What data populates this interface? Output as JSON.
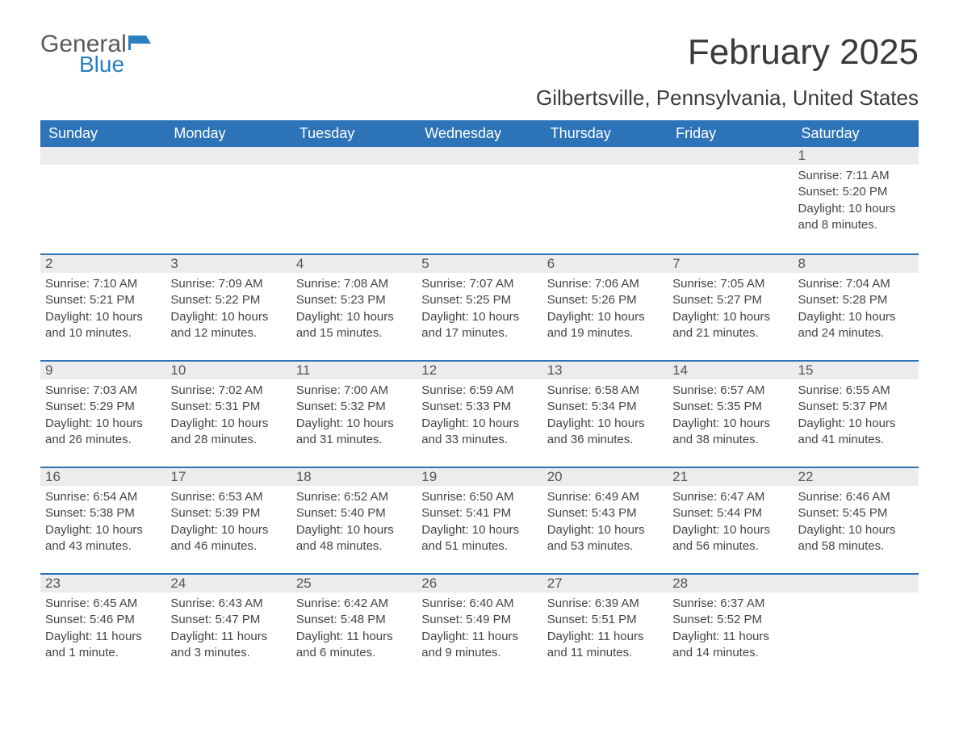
{
  "logo": {
    "word1": "General",
    "word2": "Blue",
    "flag_color": "#2a7fbf",
    "word1_color": "#5a5a5a",
    "word2_color": "#2a7fbf"
  },
  "title": "February 2025",
  "location": "Gilbertsville, Pennsylvania, United States",
  "colors": {
    "header_bg": "#2d73b8",
    "header_text": "#ffffff",
    "daynum_bg": "#ececec",
    "row_divider": "#2d73b8",
    "body_text": "#444444",
    "page_bg": "#ffffff"
  },
  "weekdays": [
    "Sunday",
    "Monday",
    "Tuesday",
    "Wednesday",
    "Thursday",
    "Friday",
    "Saturday"
  ],
  "weeks": [
    [
      {
        "blank": true
      },
      {
        "blank": true
      },
      {
        "blank": true
      },
      {
        "blank": true
      },
      {
        "blank": true
      },
      {
        "blank": true
      },
      {
        "day": "1",
        "sunrise": "Sunrise: 7:11 AM",
        "sunset": "Sunset: 5:20 PM",
        "daylight": "Daylight: 10 hours and 8 minutes."
      }
    ],
    [
      {
        "day": "2",
        "sunrise": "Sunrise: 7:10 AM",
        "sunset": "Sunset: 5:21 PM",
        "daylight": "Daylight: 10 hours and 10 minutes."
      },
      {
        "day": "3",
        "sunrise": "Sunrise: 7:09 AM",
        "sunset": "Sunset: 5:22 PM",
        "daylight": "Daylight: 10 hours and 12 minutes."
      },
      {
        "day": "4",
        "sunrise": "Sunrise: 7:08 AM",
        "sunset": "Sunset: 5:23 PM",
        "daylight": "Daylight: 10 hours and 15 minutes."
      },
      {
        "day": "5",
        "sunrise": "Sunrise: 7:07 AM",
        "sunset": "Sunset: 5:25 PM",
        "daylight": "Daylight: 10 hours and 17 minutes."
      },
      {
        "day": "6",
        "sunrise": "Sunrise: 7:06 AM",
        "sunset": "Sunset: 5:26 PM",
        "daylight": "Daylight: 10 hours and 19 minutes."
      },
      {
        "day": "7",
        "sunrise": "Sunrise: 7:05 AM",
        "sunset": "Sunset: 5:27 PM",
        "daylight": "Daylight: 10 hours and 21 minutes."
      },
      {
        "day": "8",
        "sunrise": "Sunrise: 7:04 AM",
        "sunset": "Sunset: 5:28 PM",
        "daylight": "Daylight: 10 hours and 24 minutes."
      }
    ],
    [
      {
        "day": "9",
        "sunrise": "Sunrise: 7:03 AM",
        "sunset": "Sunset: 5:29 PM",
        "daylight": "Daylight: 10 hours and 26 minutes."
      },
      {
        "day": "10",
        "sunrise": "Sunrise: 7:02 AM",
        "sunset": "Sunset: 5:31 PM",
        "daylight": "Daylight: 10 hours and 28 minutes."
      },
      {
        "day": "11",
        "sunrise": "Sunrise: 7:00 AM",
        "sunset": "Sunset: 5:32 PM",
        "daylight": "Daylight: 10 hours and 31 minutes."
      },
      {
        "day": "12",
        "sunrise": "Sunrise: 6:59 AM",
        "sunset": "Sunset: 5:33 PM",
        "daylight": "Daylight: 10 hours and 33 minutes."
      },
      {
        "day": "13",
        "sunrise": "Sunrise: 6:58 AM",
        "sunset": "Sunset: 5:34 PM",
        "daylight": "Daylight: 10 hours and 36 minutes."
      },
      {
        "day": "14",
        "sunrise": "Sunrise: 6:57 AM",
        "sunset": "Sunset: 5:35 PM",
        "daylight": "Daylight: 10 hours and 38 minutes."
      },
      {
        "day": "15",
        "sunrise": "Sunrise: 6:55 AM",
        "sunset": "Sunset: 5:37 PM",
        "daylight": "Daylight: 10 hours and 41 minutes."
      }
    ],
    [
      {
        "day": "16",
        "sunrise": "Sunrise: 6:54 AM",
        "sunset": "Sunset: 5:38 PM",
        "daylight": "Daylight: 10 hours and 43 minutes."
      },
      {
        "day": "17",
        "sunrise": "Sunrise: 6:53 AM",
        "sunset": "Sunset: 5:39 PM",
        "daylight": "Daylight: 10 hours and 46 minutes."
      },
      {
        "day": "18",
        "sunrise": "Sunrise: 6:52 AM",
        "sunset": "Sunset: 5:40 PM",
        "daylight": "Daylight: 10 hours and 48 minutes."
      },
      {
        "day": "19",
        "sunrise": "Sunrise: 6:50 AM",
        "sunset": "Sunset: 5:41 PM",
        "daylight": "Daylight: 10 hours and 51 minutes."
      },
      {
        "day": "20",
        "sunrise": "Sunrise: 6:49 AM",
        "sunset": "Sunset: 5:43 PM",
        "daylight": "Daylight: 10 hours and 53 minutes."
      },
      {
        "day": "21",
        "sunrise": "Sunrise: 6:47 AM",
        "sunset": "Sunset: 5:44 PM",
        "daylight": "Daylight: 10 hours and 56 minutes."
      },
      {
        "day": "22",
        "sunrise": "Sunrise: 6:46 AM",
        "sunset": "Sunset: 5:45 PM",
        "daylight": "Daylight: 10 hours and 58 minutes."
      }
    ],
    [
      {
        "day": "23",
        "sunrise": "Sunrise: 6:45 AM",
        "sunset": "Sunset: 5:46 PM",
        "daylight": "Daylight: 11 hours and 1 minute."
      },
      {
        "day": "24",
        "sunrise": "Sunrise: 6:43 AM",
        "sunset": "Sunset: 5:47 PM",
        "daylight": "Daylight: 11 hours and 3 minutes."
      },
      {
        "day": "25",
        "sunrise": "Sunrise: 6:42 AM",
        "sunset": "Sunset: 5:48 PM",
        "daylight": "Daylight: 11 hours and 6 minutes."
      },
      {
        "day": "26",
        "sunrise": "Sunrise: 6:40 AM",
        "sunset": "Sunset: 5:49 PM",
        "daylight": "Daylight: 11 hours and 9 minutes."
      },
      {
        "day": "27",
        "sunrise": "Sunrise: 6:39 AM",
        "sunset": "Sunset: 5:51 PM",
        "daylight": "Daylight: 11 hours and 11 minutes."
      },
      {
        "day": "28",
        "sunrise": "Sunrise: 6:37 AM",
        "sunset": "Sunset: 5:52 PM",
        "daylight": "Daylight: 11 hours and 14 minutes."
      },
      {
        "blank": true
      }
    ]
  ]
}
